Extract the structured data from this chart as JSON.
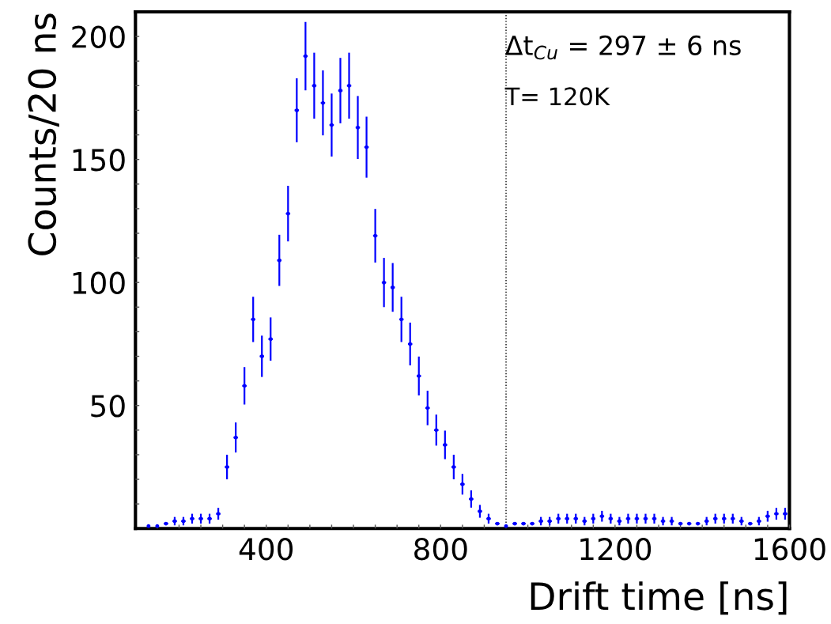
{
  "chart_data": {
    "type": "scatter",
    "xlabel": "Drift time [ns]",
    "ylabel": "Counts/20 ns",
    "annotations": [
      "Δt$_{Cu}$ = 297 ± 6 ns",
      "T= 120K"
    ],
    "x": [
      130,
      150,
      170,
      190,
      210,
      230,
      250,
      270,
      290,
      310,
      330,
      350,
      370,
      390,
      410,
      430,
      450,
      470,
      490,
      510,
      530,
      550,
      570,
      590,
      610,
      630,
      650,
      670,
      690,
      710,
      730,
      750,
      770,
      790,
      810,
      830,
      850,
      870,
      890,
      910,
      930,
      950,
      970,
      990,
      1010,
      1030,
      1050,
      1070,
      1090,
      1110,
      1130,
      1150,
      1170,
      1190,
      1210,
      1230,
      1250,
      1270,
      1290,
      1310,
      1330,
      1350,
      1370,
      1390,
      1410,
      1430,
      1450,
      1470,
      1490,
      1510,
      1530,
      1550,
      1570,
      1590
    ],
    "series": [
      {
        "color": "#0000ff",
        "values": [
          1,
          1,
          2,
          3,
          3,
          4,
          4,
          4,
          6,
          25,
          37,
          58,
          85,
          70,
          77,
          109,
          128,
          170,
          192,
          180,
          173,
          164,
          178,
          180,
          163,
          155,
          119,
          100,
          98,
          85,
          75,
          62,
          49,
          40,
          34,
          25,
          18,
          12,
          7,
          4,
          2,
          1,
          2,
          2,
          2,
          3,
          3,
          4,
          4,
          4,
          3,
          4,
          5,
          4,
          3,
          4,
          4,
          4,
          4,
          3,
          3,
          2,
          2,
          2,
          3,
          4,
          4,
          4,
          3,
          2,
          3,
          5,
          6,
          6
        ],
        "errors": [
          null,
          null,
          null,
          1.7,
          1.7,
          2,
          2,
          2,
          2.4,
          5,
          6.1,
          7.6,
          9.2,
          8.4,
          8.8,
          10.4,
          11.3,
          13,
          13.9,
          13.4,
          13.2,
          12.8,
          13.3,
          13.4,
          12.8,
          12.4,
          10.9,
          10,
          9.9,
          9.2,
          8.7,
          7.9,
          7,
          6.3,
          5.8,
          5,
          4.2,
          3.5,
          2.6,
          2,
          null,
          null,
          null,
          null,
          null,
          1.7,
          1.7,
          2,
          2,
          2,
          1.7,
          2,
          2.2,
          2,
          1.7,
          2,
          2,
          2,
          2,
          1.7,
          1.7,
          null,
          null,
          null,
          1.7,
          2,
          2,
          2,
          1.7,
          null,
          1.7,
          2.2,
          2.4,
          2.4
        ],
        "xerrors": [
          null,
          null,
          5,
          5,
          5,
          5,
          5,
          5,
          5,
          5,
          5,
          5,
          5,
          5,
          5,
          5,
          5,
          5,
          5,
          5,
          5,
          5,
          5,
          5,
          5,
          5,
          5,
          5,
          5,
          5,
          5,
          5,
          5,
          5,
          5,
          5,
          5,
          5,
          5,
          5,
          5,
          null,
          5,
          5,
          5,
          5,
          5,
          5,
          5,
          5,
          5,
          5,
          5,
          5,
          5,
          5,
          5,
          5,
          5,
          5,
          5,
          5,
          5,
          5,
          5,
          5,
          5,
          5,
          5,
          5,
          5,
          5,
          5,
          5
        ]
      }
    ],
    "marker": "circle",
    "xlim": [
      100,
      1600
    ],
    "xticks": [
      {
        "value": 150,
        "label": null
      },
      {
        "value": 200,
        "label": null
      },
      {
        "value": 250,
        "label": null
      },
      {
        "value": 300,
        "label": null
      },
      {
        "value": 350,
        "label": null
      },
      400,
      {
        "value": 450,
        "label": null
      },
      {
        "value": 500,
        "label": null
      },
      {
        "value": 550,
        "label": null
      },
      {
        "value": 600,
        "label": null
      },
      {
        "value": 650,
        "label": null
      },
      {
        "value": 700,
        "label": null
      },
      {
        "value": 750,
        "label": null
      },
      800,
      {
        "value": 850,
        "label": null
      },
      {
        "value": 900,
        "label": null
      },
      {
        "value": 950,
        "label": null
      },
      {
        "value": 1000,
        "label": null
      },
      {
        "value": 1050,
        "label": null
      },
      {
        "value": 1100,
        "label": null
      },
      {
        "value": 1150,
        "label": null
      },
      1200,
      {
        "value": 1250,
        "label": null
      },
      {
        "value": 1300,
        "label": null
      },
      {
        "value": 1350,
        "label": null
      },
      {
        "value": 1400,
        "label": null
      },
      {
        "value": 1450,
        "label": null
      },
      {
        "value": 1500,
        "label": null
      },
      {
        "value": 1550,
        "label": null
      },
      1600
    ],
    "ylim": [
      0,
      210
    ],
    "yticks": [
      {
        "value": 10,
        "label": null
      },
      {
        "value": 20,
        "label": null
      },
      {
        "value": 30,
        "label": null
      },
      {
        "value": 40,
        "label": null
      },
      50,
      {
        "value": 60,
        "label": null
      },
      {
        "value": 70,
        "label": null
      },
      {
        "value": 80,
        "label": null
      },
      {
        "value": 90,
        "label": null
      },
      100,
      {
        "value": 110,
        "label": null
      },
      {
        "value": 120,
        "label": null
      },
      {
        "value": 130,
        "label": null
      },
      {
        "value": 140,
        "label": null
      },
      150,
      {
        "value": 160,
        "label": null
      },
      {
        "value": 170,
        "label": null
      },
      {
        "value": 180,
        "label": null
      },
      {
        "value": 190,
        "label": null
      },
      200
    ],
    "ref_lines": [
      {
        "axis": "x",
        "value": 950,
        "color": "#000000",
        "line_style": "dotted"
      }
    ],
    "grid": false,
    "legend": false
  }
}
